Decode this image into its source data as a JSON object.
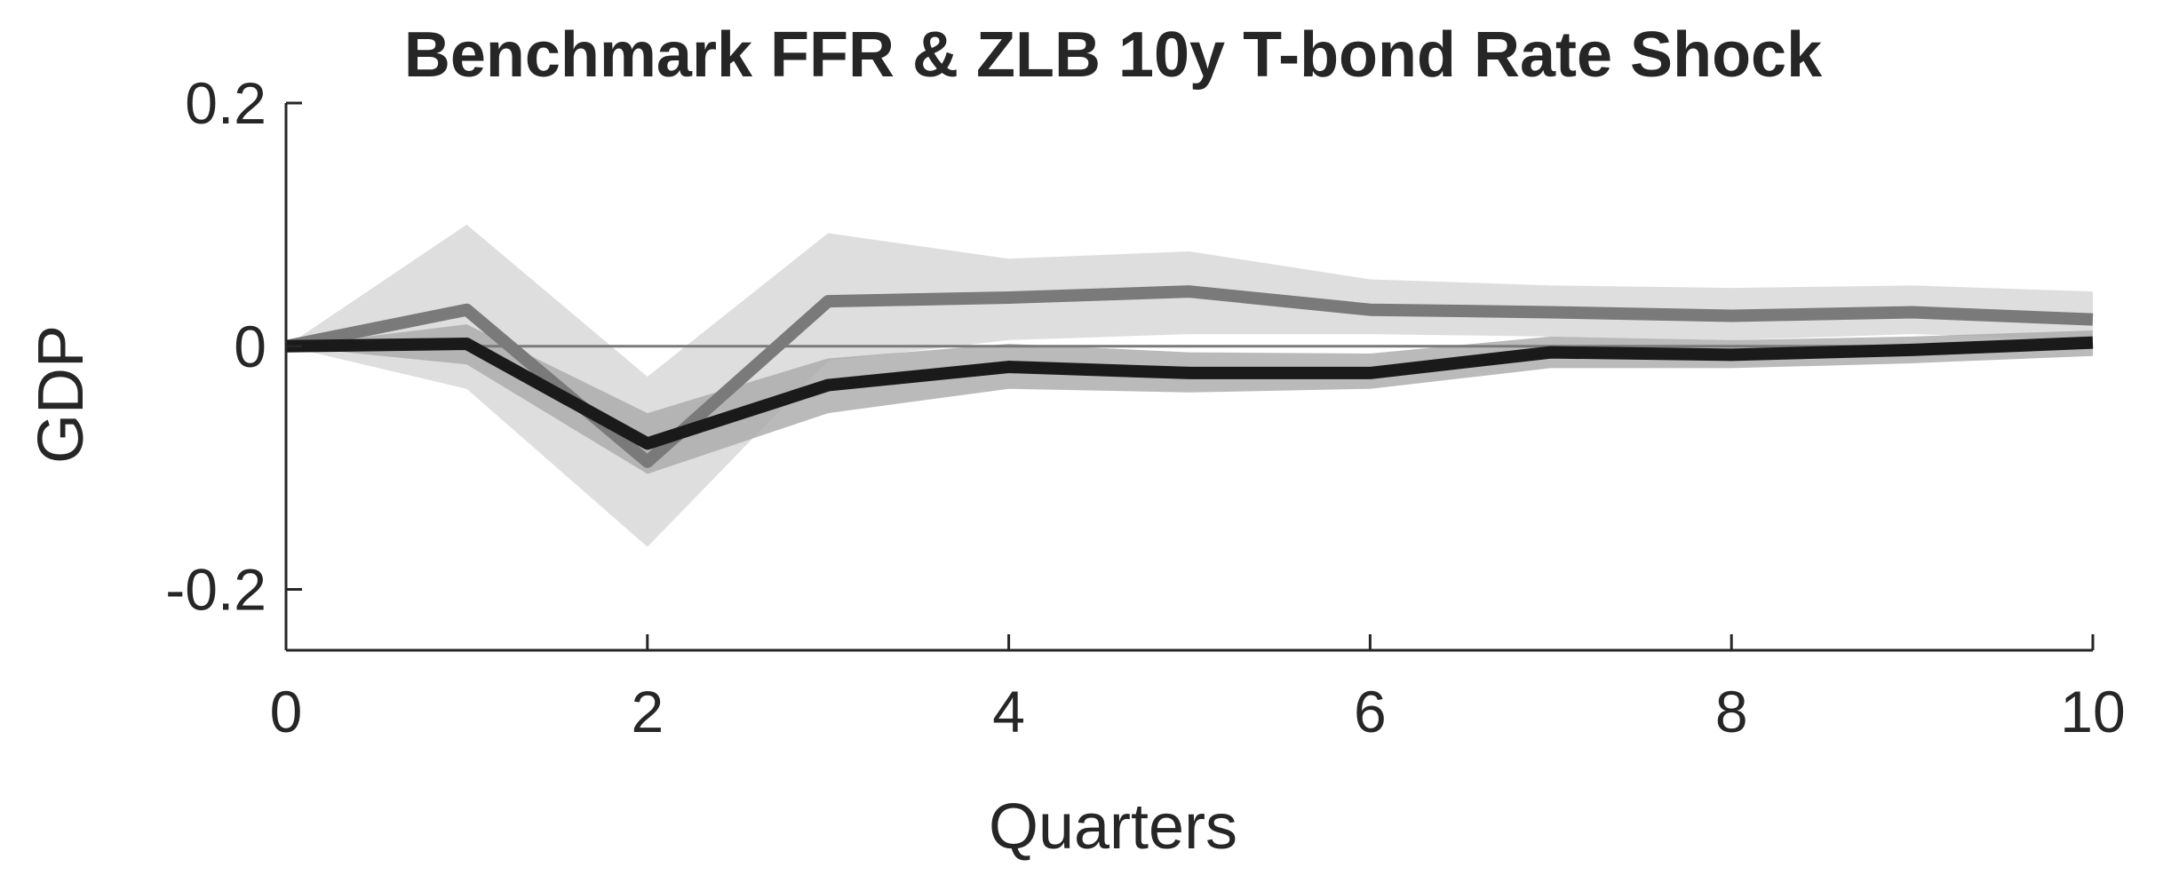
{
  "chart_data": {
    "type": "line",
    "title": "Benchmark FFR & ZLB 10y T-bond Rate Shock",
    "xlabel": "Quarters",
    "ylabel": "GDP",
    "xlim": [
      0,
      10
    ],
    "ylim": [
      -0.25,
      0.2
    ],
    "xticks": [
      0,
      2,
      4,
      6,
      8,
      10
    ],
    "yticks": [
      -0.2,
      0,
      0.2
    ],
    "ytick_labels": [
      "-0.2",
      "0",
      "0.2"
    ],
    "grid": false,
    "zero_line": true,
    "x": [
      0,
      1,
      2,
      3,
      4,
      5,
      6,
      7,
      8,
      9,
      10
    ],
    "series": [
      {
        "color": "#7a7a7a",
        "values": [
          0,
          0.03,
          -0.095,
          0.037,
          0.04,
          0.045,
          0.03,
          0.028,
          0.025,
          0.028,
          0.022
        ],
        "band_lower": [
          0,
          -0.035,
          -0.165,
          -0.012,
          0.005,
          0.01,
          0.01,
          0.008,
          0.005,
          0.01,
          0.005
        ],
        "band_upper": [
          0,
          0.1,
          -0.025,
          0.093,
          0.072,
          0.078,
          0.055,
          0.05,
          0.048,
          0.05,
          0.045
        ],
        "band_color": "#d3d3d3"
      },
      {
        "color": "#1a1a1a",
        "values": [
          0,
          0.002,
          -0.08,
          -0.032,
          -0.017,
          -0.022,
          -0.022,
          -0.005,
          -0.007,
          -0.003,
          0.003
        ],
        "band_lower": [
          0,
          -0.015,
          -0.105,
          -0.055,
          -0.035,
          -0.038,
          -0.035,
          -0.018,
          -0.018,
          -0.014,
          -0.008
        ],
        "band_upper": [
          0,
          0.018,
          -0.055,
          -0.01,
          0.002,
          -0.005,
          -0.006,
          0.008,
          0.005,
          0.008,
          0.013
        ],
        "band_color": "#a9a9a9"
      }
    ]
  }
}
